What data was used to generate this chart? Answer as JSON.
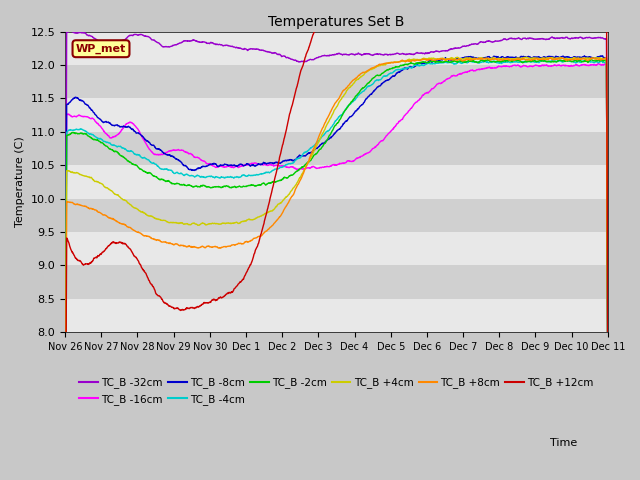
{
  "title": "Temperatures Set B",
  "xlabel": "Time",
  "ylabel": "Temperature (C)",
  "ylim": [
    8.0,
    12.5
  ],
  "yticks": [
    8.0,
    8.5,
    9.0,
    9.5,
    10.0,
    10.5,
    11.0,
    11.5,
    12.0,
    12.5
  ],
  "xtick_labels": [
    "Nov 26",
    "Nov 27",
    "Nov 28",
    "Nov 29",
    "Nov 30",
    "Dec 1",
    "Dec 2",
    "Dec 3",
    "Dec 4",
    "Dec 5",
    "Dec 6",
    "Dec 7",
    "Dec 8",
    "Dec 9",
    "Dec 10",
    "Dec 11"
  ],
  "background_color": "#d8d8d8",
  "plot_bg_color": "#d8d8d8",
  "band_colors": [
    "#e8e8e8",
    "#d0d0d0"
  ],
  "series": [
    {
      "label": "TC_B -32cm",
      "color": "#9900cc",
      "lw": 1.0
    },
    {
      "label": "TC_B -16cm",
      "color": "#ff00ff",
      "lw": 1.0
    },
    {
      "label": "TC_B -8cm",
      "color": "#0000cc",
      "lw": 1.0
    },
    {
      "label": "TC_B -4cm",
      "color": "#00cccc",
      "lw": 1.0
    },
    {
      "label": "TC_B -2cm",
      "color": "#00cc00",
      "lw": 1.0
    },
    {
      "label": "TC_B +4cm",
      "color": "#cccc00",
      "lw": 1.0
    },
    {
      "label": "TC_B +8cm",
      "color": "#ff8800",
      "lw": 1.0
    },
    {
      "label": "TC_B +12cm",
      "color": "#cc0000",
      "lw": 1.0
    }
  ],
  "wp_met_box": {
    "text": "WP_met",
    "facecolor": "#ffff99",
    "edgecolor": "#8B0000",
    "fontsize": 8
  },
  "figsize": [
    6.4,
    4.8
  ],
  "dpi": 100
}
